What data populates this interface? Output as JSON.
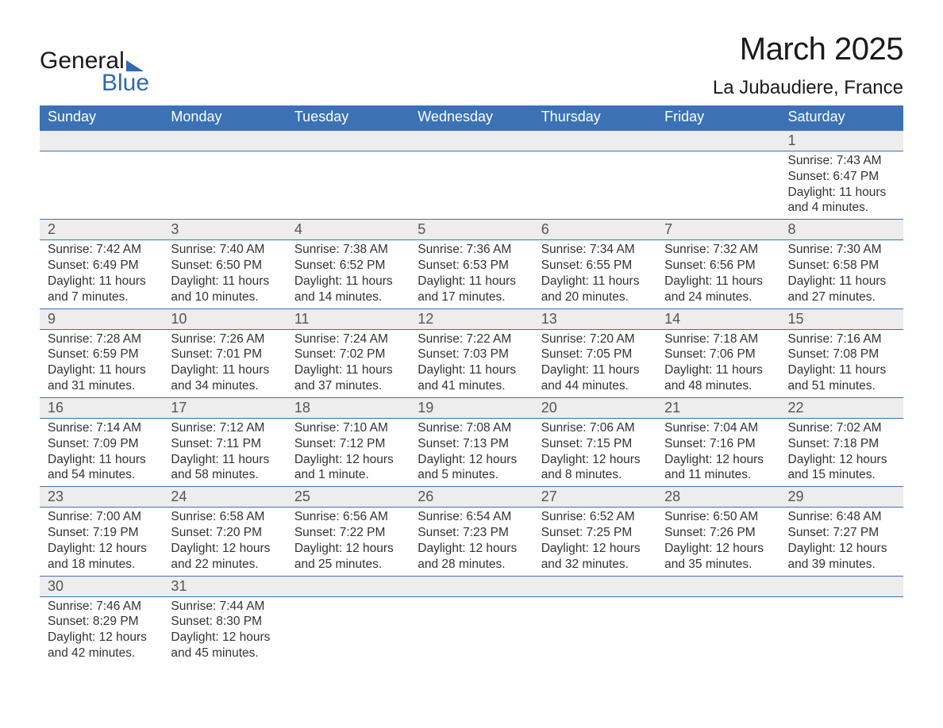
{
  "logo": {
    "line1": "General",
    "line2": "Blue"
  },
  "title": {
    "month": "March 2025",
    "location": "La Jubaudiere, France"
  },
  "colors": {
    "header_bg": "#3b72b6",
    "header_text": "#ffffff",
    "daynum_bg": "#ededed",
    "border": "#3b72b6",
    "brand_blue": "#2e6bb0",
    "text": "#333333"
  },
  "weekdays": [
    "Sunday",
    "Monday",
    "Tuesday",
    "Wednesday",
    "Thursday",
    "Friday",
    "Saturday"
  ],
  "weeks": [
    {
      "days": [
        null,
        null,
        null,
        null,
        null,
        null,
        {
          "n": "1",
          "sunrise": "Sunrise: 7:43 AM",
          "sunset": "Sunset: 6:47 PM",
          "daylight": "Daylight: 11 hours and 4 minutes."
        }
      ]
    },
    {
      "days": [
        {
          "n": "2",
          "sunrise": "Sunrise: 7:42 AM",
          "sunset": "Sunset: 6:49 PM",
          "daylight": "Daylight: 11 hours and 7 minutes."
        },
        {
          "n": "3",
          "sunrise": "Sunrise: 7:40 AM",
          "sunset": "Sunset: 6:50 PM",
          "daylight": "Daylight: 11 hours and 10 minutes."
        },
        {
          "n": "4",
          "sunrise": "Sunrise: 7:38 AM",
          "sunset": "Sunset: 6:52 PM",
          "daylight": "Daylight: 11 hours and 14 minutes."
        },
        {
          "n": "5",
          "sunrise": "Sunrise: 7:36 AM",
          "sunset": "Sunset: 6:53 PM",
          "daylight": "Daylight: 11 hours and 17 minutes."
        },
        {
          "n": "6",
          "sunrise": "Sunrise: 7:34 AM",
          "sunset": "Sunset: 6:55 PM",
          "daylight": "Daylight: 11 hours and 20 minutes."
        },
        {
          "n": "7",
          "sunrise": "Sunrise: 7:32 AM",
          "sunset": "Sunset: 6:56 PM",
          "daylight": "Daylight: 11 hours and 24 minutes."
        },
        {
          "n": "8",
          "sunrise": "Sunrise: 7:30 AM",
          "sunset": "Sunset: 6:58 PM",
          "daylight": "Daylight: 11 hours and 27 minutes."
        }
      ]
    },
    {
      "days": [
        {
          "n": "9",
          "sunrise": "Sunrise: 7:28 AM",
          "sunset": "Sunset: 6:59 PM",
          "daylight": "Daylight: 11 hours and 31 minutes."
        },
        {
          "n": "10",
          "sunrise": "Sunrise: 7:26 AM",
          "sunset": "Sunset: 7:01 PM",
          "daylight": "Daylight: 11 hours and 34 minutes."
        },
        {
          "n": "11",
          "sunrise": "Sunrise: 7:24 AM",
          "sunset": "Sunset: 7:02 PM",
          "daylight": "Daylight: 11 hours and 37 minutes."
        },
        {
          "n": "12",
          "sunrise": "Sunrise: 7:22 AM",
          "sunset": "Sunset: 7:03 PM",
          "daylight": "Daylight: 11 hours and 41 minutes."
        },
        {
          "n": "13",
          "sunrise": "Sunrise: 7:20 AM",
          "sunset": "Sunset: 7:05 PM",
          "daylight": "Daylight: 11 hours and 44 minutes."
        },
        {
          "n": "14",
          "sunrise": "Sunrise: 7:18 AM",
          "sunset": "Sunset: 7:06 PM",
          "daylight": "Daylight: 11 hours and 48 minutes."
        },
        {
          "n": "15",
          "sunrise": "Sunrise: 7:16 AM",
          "sunset": "Sunset: 7:08 PM",
          "daylight": "Daylight: 11 hours and 51 minutes."
        }
      ]
    },
    {
      "days": [
        {
          "n": "16",
          "sunrise": "Sunrise: 7:14 AM",
          "sunset": "Sunset: 7:09 PM",
          "daylight": "Daylight: 11 hours and 54 minutes."
        },
        {
          "n": "17",
          "sunrise": "Sunrise: 7:12 AM",
          "sunset": "Sunset: 7:11 PM",
          "daylight": "Daylight: 11 hours and 58 minutes."
        },
        {
          "n": "18",
          "sunrise": "Sunrise: 7:10 AM",
          "sunset": "Sunset: 7:12 PM",
          "daylight": "Daylight: 12 hours and 1 minute."
        },
        {
          "n": "19",
          "sunrise": "Sunrise: 7:08 AM",
          "sunset": "Sunset: 7:13 PM",
          "daylight": "Daylight: 12 hours and 5 minutes."
        },
        {
          "n": "20",
          "sunrise": "Sunrise: 7:06 AM",
          "sunset": "Sunset: 7:15 PM",
          "daylight": "Daylight: 12 hours and 8 minutes."
        },
        {
          "n": "21",
          "sunrise": "Sunrise: 7:04 AM",
          "sunset": "Sunset: 7:16 PM",
          "daylight": "Daylight: 12 hours and 11 minutes."
        },
        {
          "n": "22",
          "sunrise": "Sunrise: 7:02 AM",
          "sunset": "Sunset: 7:18 PM",
          "daylight": "Daylight: 12 hours and 15 minutes."
        }
      ]
    },
    {
      "days": [
        {
          "n": "23",
          "sunrise": "Sunrise: 7:00 AM",
          "sunset": "Sunset: 7:19 PM",
          "daylight": "Daylight: 12 hours and 18 minutes."
        },
        {
          "n": "24",
          "sunrise": "Sunrise: 6:58 AM",
          "sunset": "Sunset: 7:20 PM",
          "daylight": "Daylight: 12 hours and 22 minutes."
        },
        {
          "n": "25",
          "sunrise": "Sunrise: 6:56 AM",
          "sunset": "Sunset: 7:22 PM",
          "daylight": "Daylight: 12 hours and 25 minutes."
        },
        {
          "n": "26",
          "sunrise": "Sunrise: 6:54 AM",
          "sunset": "Sunset: 7:23 PM",
          "daylight": "Daylight: 12 hours and 28 minutes."
        },
        {
          "n": "27",
          "sunrise": "Sunrise: 6:52 AM",
          "sunset": "Sunset: 7:25 PM",
          "daylight": "Daylight: 12 hours and 32 minutes."
        },
        {
          "n": "28",
          "sunrise": "Sunrise: 6:50 AM",
          "sunset": "Sunset: 7:26 PM",
          "daylight": "Daylight: 12 hours and 35 minutes."
        },
        {
          "n": "29",
          "sunrise": "Sunrise: 6:48 AM",
          "sunset": "Sunset: 7:27 PM",
          "daylight": "Daylight: 12 hours and 39 minutes."
        }
      ]
    },
    {
      "days": [
        {
          "n": "30",
          "sunrise": "Sunrise: 7:46 AM",
          "sunset": "Sunset: 8:29 PM",
          "daylight": "Daylight: 12 hours and 42 minutes."
        },
        {
          "n": "31",
          "sunrise": "Sunrise: 7:44 AM",
          "sunset": "Sunset: 8:30 PM",
          "daylight": "Daylight: 12 hours and 45 minutes."
        },
        null,
        null,
        null,
        null,
        null
      ]
    }
  ]
}
